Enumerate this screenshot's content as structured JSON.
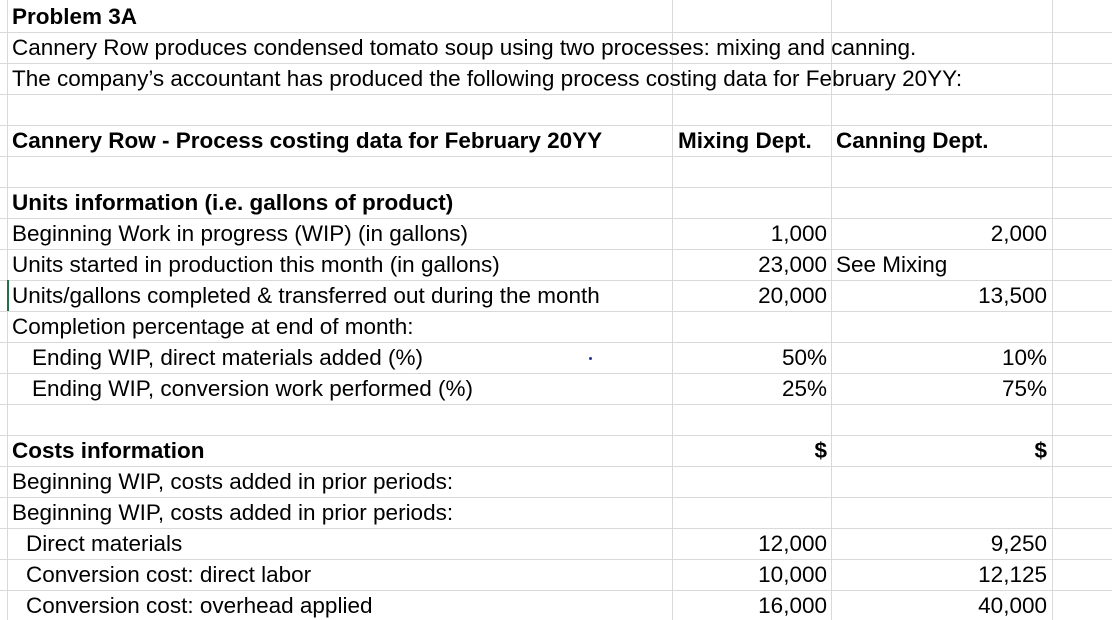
{
  "title": "Problem 3A",
  "intro_line1": "Cannery Row produces condensed tomato soup using two processes: mixing and canning.",
  "intro_line2": "The company’s accountant has produced the following process costing data for February 20YY:",
  "table_title": "Cannery Row - Process costing data for February 20YY",
  "col_headers": {
    "mixing": "Mixing Dept.",
    "canning": "Canning Dept."
  },
  "units_section": {
    "heading": "Units information (i.e. gallons of product)",
    "beginning_wip": {
      "label": "Beginning Work in progress (WIP) (in gallons)",
      "mixing": "1,000",
      "canning": "2,000"
    },
    "units_started": {
      "label": "Units started in production this month (in gallons)",
      "mixing": "23,000",
      "canning": "See Mixing"
    },
    "units_completed": {
      "label": "Units/gallons completed & transferred out during the month",
      "mixing": "20,000",
      "canning": "13,500"
    },
    "completion_pct": {
      "label": "Completion percentage at end of month:"
    },
    "ending_wip_dm": {
      "label": "Ending WIP, direct materials added (%)",
      "mixing": "50%",
      "canning": "10%"
    },
    "ending_wip_conv": {
      "label": "Ending WIP, conversion work performed (%)",
      "mixing": "25%",
      "canning": "75%"
    }
  },
  "costs_section": {
    "heading": "Costs information",
    "mixing_currency": "$",
    "canning_currency": "$",
    "beginning_wip_1": {
      "label": "Beginning WIP, costs added in prior periods:"
    },
    "beginning_wip_2": {
      "label": "Beginning WIP, costs added in prior periods:"
    },
    "direct_materials": {
      "label": "Direct materials",
      "mixing": "12,000",
      "canning": "9,250"
    },
    "direct_labor": {
      "label": "Conversion cost: direct labor",
      "mixing": "10,000",
      "canning": "12,125"
    },
    "overhead": {
      "label": "Conversion cost: overhead applied",
      "mixing": "16,000",
      "canning": "40,000"
    }
  }
}
